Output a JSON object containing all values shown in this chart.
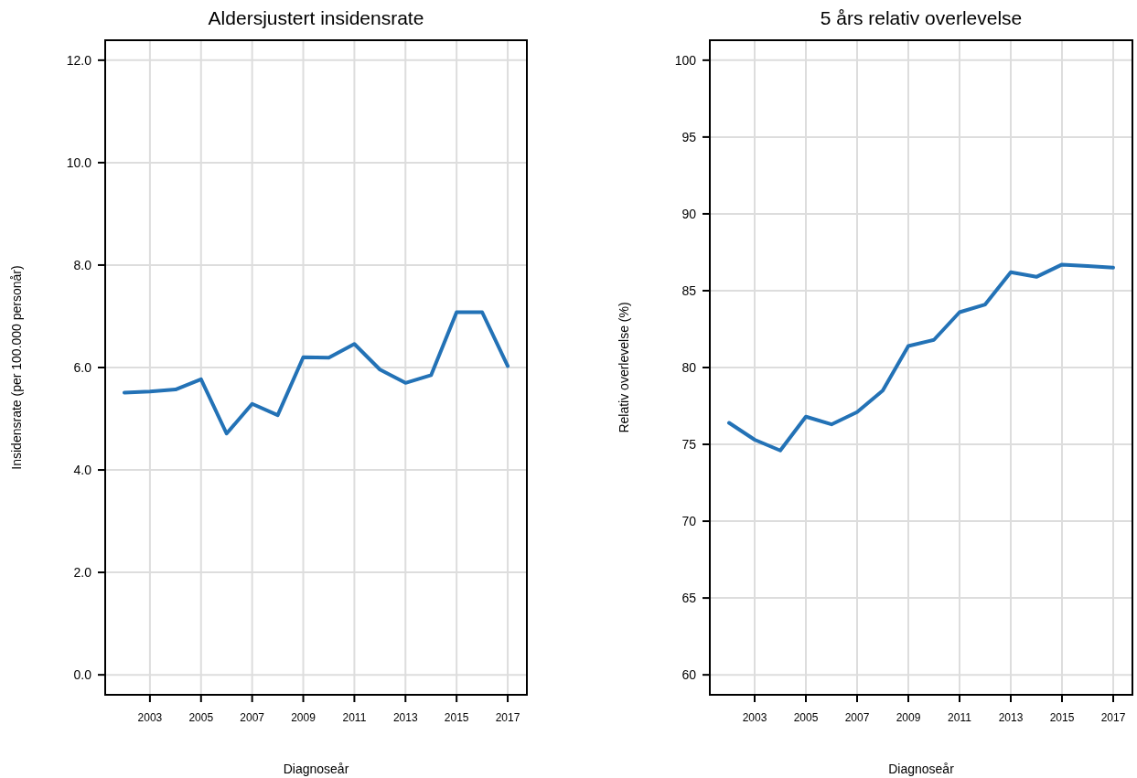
{
  "chart_data": [
    {
      "type": "line",
      "title": "Aldersjustert insidensrate",
      "xlabel": "Diagnoseår",
      "ylabel": "Insidensrate (per 100.000 personår)",
      "x": [
        2002,
        2003,
        2004,
        2005,
        2006,
        2007,
        2008,
        2009,
        2010,
        2011,
        2012,
        2013,
        2014,
        2015,
        2016,
        2017
      ],
      "series": [
        {
          "color": "#2372b6",
          "values": [
            5.51,
            5.53,
            5.57,
            5.77,
            4.71,
            5.29,
            5.07,
            6.2,
            6.19,
            6.46,
            5.96,
            5.7,
            5.85,
            7.08,
            7.08,
            6.03
          ]
        }
      ],
      "xlim": [
        2001.25,
        2017.75
      ],
      "xticks": [
        2003,
        2005,
        2007,
        2009,
        2011,
        2013,
        2015,
        2017
      ],
      "ylim": [
        -0.39,
        12.39
      ],
      "yticks": [
        {
          "value": 0,
          "label": "0.0"
        },
        {
          "value": 2,
          "label": "2.0"
        },
        {
          "value": 4,
          "label": "4.0"
        },
        {
          "value": 6,
          "label": "6.0"
        },
        {
          "value": 8,
          "label": "8.0"
        },
        {
          "value": 10,
          "label": "10.0"
        },
        {
          "value": 12,
          "label": "12.0"
        }
      ],
      "grid": true,
      "marker": "none",
      "line_style": "solid"
    },
    {
      "type": "line",
      "title": "5 års relativ overlevelse",
      "xlabel": "Diagnoseår",
      "ylabel": "Relativ overlevelse (%)",
      "x": [
        2002,
        2003,
        2004,
        2005,
        2006,
        2007,
        2008,
        2009,
        2010,
        2011,
        2012,
        2013,
        2014,
        2015,
        2016,
        2017
      ],
      "series": [
        {
          "color": "#2372b6",
          "values": [
            76.4,
            75.3,
            74.6,
            76.8,
            76.3,
            77.1,
            78.5,
            81.4,
            81.8,
            83.6,
            84.1,
            86.2,
            85.9,
            86.7,
            86.6,
            86.5
          ]
        }
      ],
      "xlim": [
        2001.25,
        2017.75
      ],
      "xticks": [
        2003,
        2005,
        2007,
        2009,
        2011,
        2013,
        2015,
        2017
      ],
      "ylim": [
        58.7,
        101.3
      ],
      "yticks": [
        60,
        65,
        70,
        75,
        80,
        85,
        90,
        95,
        100
      ],
      "grid": true,
      "marker": "none",
      "line_style": "solid"
    }
  ]
}
